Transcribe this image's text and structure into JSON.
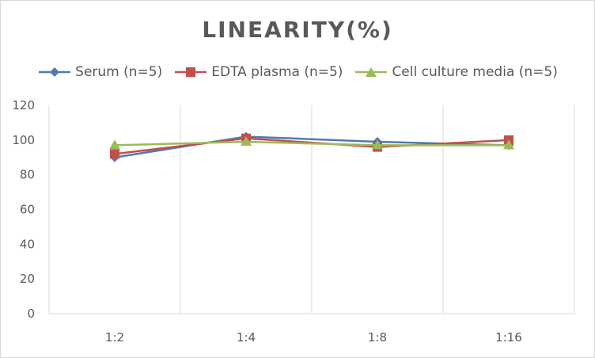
{
  "chart_data": {
    "type": "line",
    "title": "LINEARITY(%)",
    "categories": [
      "1:2",
      "1:4",
      "1:8",
      "1:16"
    ],
    "ylim": [
      0,
      120
    ],
    "yticks": [
      0,
      20,
      40,
      60,
      80,
      100,
      120
    ],
    "grid": "vertical",
    "legend_position": "top",
    "series": [
      {
        "name": "Serum (n=5)",
        "values": [
          90,
          102,
          99,
          97
        ],
        "color": "#4e7ab5",
        "marker": "diamond"
      },
      {
        "name": "EDTA plasma (n=5)",
        "values": [
          92,
          101,
          96,
          100
        ],
        "color": "#c0504d",
        "marker": "square"
      },
      {
        "name": "Cell culture media (n=5)",
        "values": [
          97,
          99,
          97,
          97
        ],
        "color": "#9bbb59",
        "marker": "triangle"
      }
    ]
  }
}
